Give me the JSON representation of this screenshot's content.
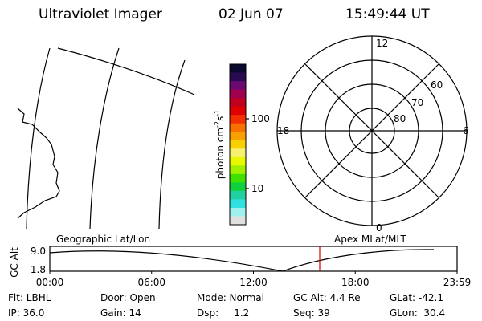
{
  "header": {
    "instrument": "Ultraviolet Imager",
    "date": "02 Jun 07",
    "time": "15:49:44 UT"
  },
  "colorbar": {
    "label": {
      "base": "photon cm",
      "exp1": "-2",
      "unit2": "s",
      "exp2": "-1"
    },
    "ticks": [
      "100",
      "10"
    ]
  },
  "polar": {
    "mlt_labels": [
      "12",
      "6",
      "0",
      "18"
    ],
    "lat_labels": [
      "60",
      "70",
      "80"
    ]
  },
  "timeline": {
    "left_title": "Geographic Lat/Lon",
    "right_title": "Apex MLat/MLT",
    "axis_label": "GC Alt",
    "y_labels": [
      "9.0",
      "1.8"
    ],
    "x_labels": [
      "00:00",
      "06:00",
      "12:00",
      "18:00",
      "23:59"
    ]
  },
  "footer": {
    "rows": [
      [
        "Flt: LBHL",
        "Door: Open",
        "Mode: Normal",
        "GC Alt: 4.4 Re",
        "GLat: -42.1"
      ],
      [
        "IP: 36.0",
        "Gain: 14",
        "Dsp:     1.2",
        "Seq: 39",
        "GLon:  30.4"
      ]
    ]
  }
}
